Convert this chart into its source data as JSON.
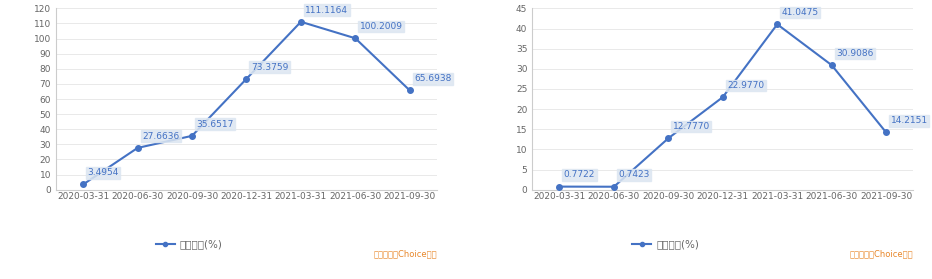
{
  "chart1": {
    "x_labels": [
      "2020-03-31",
      "2020-06-30",
      "2020-09-30",
      "2020-12-31",
      "2021-03-31",
      "2021-06-30",
      "2021-09-30"
    ],
    "values": [
      3.4954,
      27.6636,
      35.6517,
      73.3759,
      111.1164,
      100.2009,
      65.6938
    ],
    "ylim": [
      0,
      120
    ],
    "yticks": [
      0,
      10,
      20,
      30,
      40,
      50,
      60,
      70,
      80,
      90,
      100,
      110,
      120
    ]
  },
  "chart2": {
    "x_labels": [
      "2020-03-31",
      "2020-06-30",
      "2020-09-30",
      "2020-12-31",
      "2021-03-31",
      "2021-06-30",
      "2021-09-30"
    ],
    "values": [
      0.7722,
      0.7423,
      12.777,
      22.977,
      41.0475,
      30.9086,
      14.2151
    ],
    "ylim": [
      0,
      45
    ],
    "yticks": [
      0,
      5,
      10,
      15,
      20,
      25,
      30,
      35,
      40,
      45
    ]
  },
  "line_color": "#4472C4",
  "line_width": 1.5,
  "marker_size": 4,
  "legend_label": "同比增长(%)",
  "annotation_box_color": "#DCE6F1",
  "annotation_text_color": "#4472C4",
  "source_text": "数据来源：Choice数据",
  "source_color": "#E8872A",
  "source_fontsize": 6,
  "tick_fontsize": 6.5,
  "annotation_fontsize": 6.5,
  "legend_fontsize": 7.5,
  "bg_color": "#FFFFFF",
  "spine_color": "#CCCCCC",
  "grid_color": "#E0E0E0",
  "tick_color": "#666666"
}
